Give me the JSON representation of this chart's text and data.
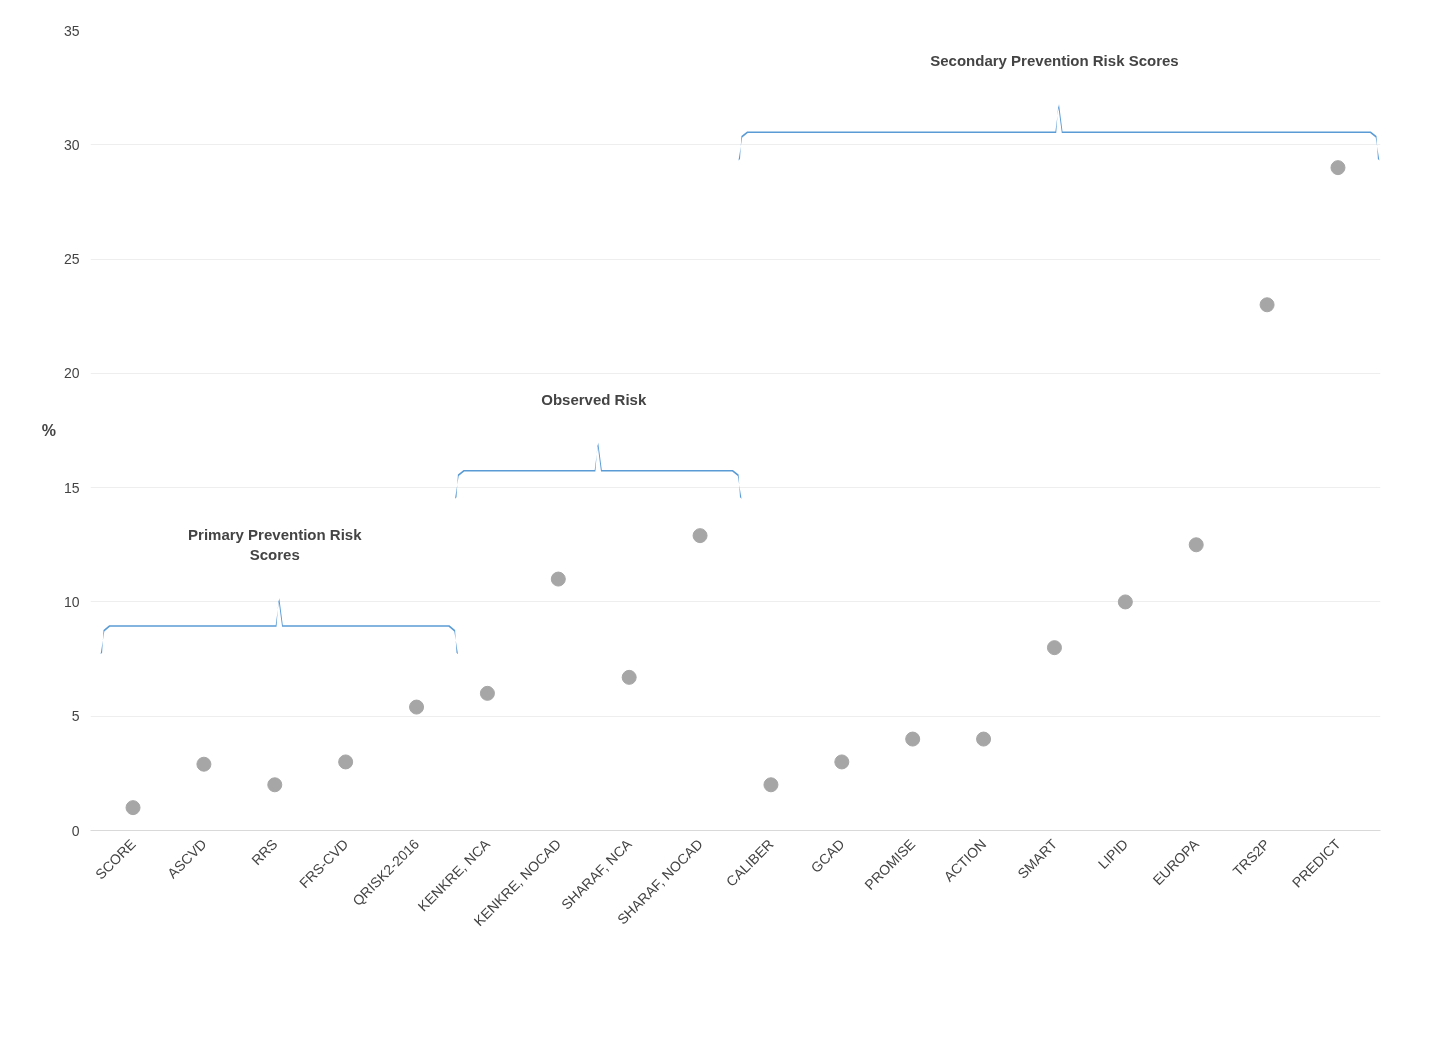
{
  "chart_data": {
    "type": "scatter",
    "ylabel": "%",
    "categories": [
      "SCORE",
      "ASCVD",
      "RRS",
      "FRS-CVD",
      "QRISK2-2016",
      "KENKRE, NCA",
      "KENKRE, NOCAD",
      "SHARAF, NCA",
      "SHARAF, NOCAD",
      "CALIBER",
      "GCAD",
      "PROMISE",
      "ACTION",
      "SMART",
      "LIPID",
      "EUROPA",
      "TRS2P",
      "PREDICT"
    ],
    "values": [
      1,
      2.9,
      2,
      3,
      5.4,
      6,
      11,
      6.7,
      12.9,
      2,
      3,
      4,
      4,
      8,
      10,
      12.5,
      23,
      29
    ],
    "color": "#a6a6a6",
    "marker": "circle",
    "ylim": [
      0,
      35
    ],
    "yticks": [
      0,
      5,
      10,
      15,
      20,
      25,
      30,
      35
    ],
    "grid": "y",
    "annotations": [
      "Primary Prevention Risk\nScores",
      "Observed Risk",
      "Secondary Prevention Risk Scores"
    ]
  }
}
